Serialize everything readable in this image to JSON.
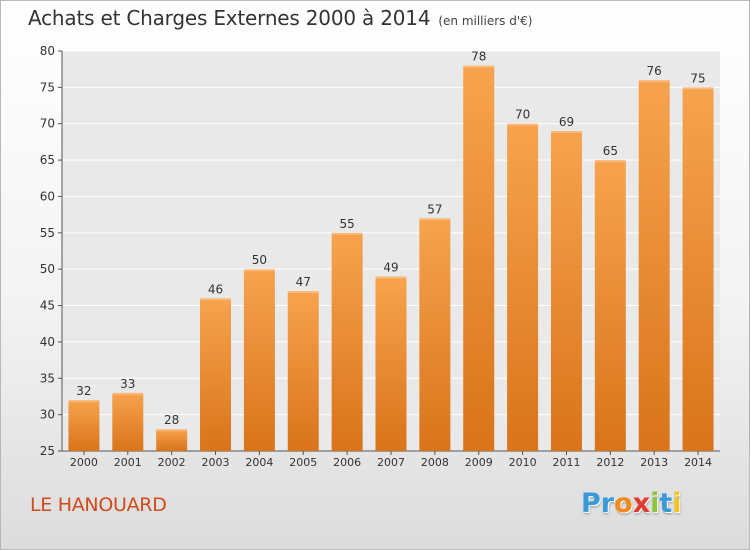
{
  "chart_data": {
    "type": "bar",
    "title": "Achats et Charges Externes 2000 à 2014",
    "subtitle": "(en milliers d'€)",
    "categories": [
      "2000",
      "2001",
      "2002",
      "2003",
      "2004",
      "2005",
      "2006",
      "2007",
      "2008",
      "2009",
      "2010",
      "2011",
      "2012",
      "2013",
      "2014"
    ],
    "values": [
      32,
      33,
      28,
      46,
      50,
      47,
      55,
      49,
      57,
      78,
      70,
      69,
      65,
      76,
      75
    ],
    "ylim": [
      25,
      80
    ],
    "yticks": [
      25,
      30,
      35,
      40,
      45,
      50,
      55,
      60,
      65,
      70,
      75,
      80
    ],
    "grid": true,
    "bar_color_top": "#f7a34e",
    "bar_color_bottom": "#d9741a"
  },
  "commune": "LE HANOUARD",
  "logo": {
    "letters": [
      {
        "char": "P",
        "color": "#3a9ad9"
      },
      {
        "char": "r",
        "color": "#3a9ad9"
      },
      {
        "char": "o",
        "color": "#f08a1c"
      },
      {
        "char": "x",
        "color": "#e03a2e"
      },
      {
        "char": "i",
        "color": "#8cc43c"
      },
      {
        "char": "t",
        "color": "#3a9ad9"
      },
      {
        "char": "i",
        "color": "#f4c320"
      }
    ]
  }
}
